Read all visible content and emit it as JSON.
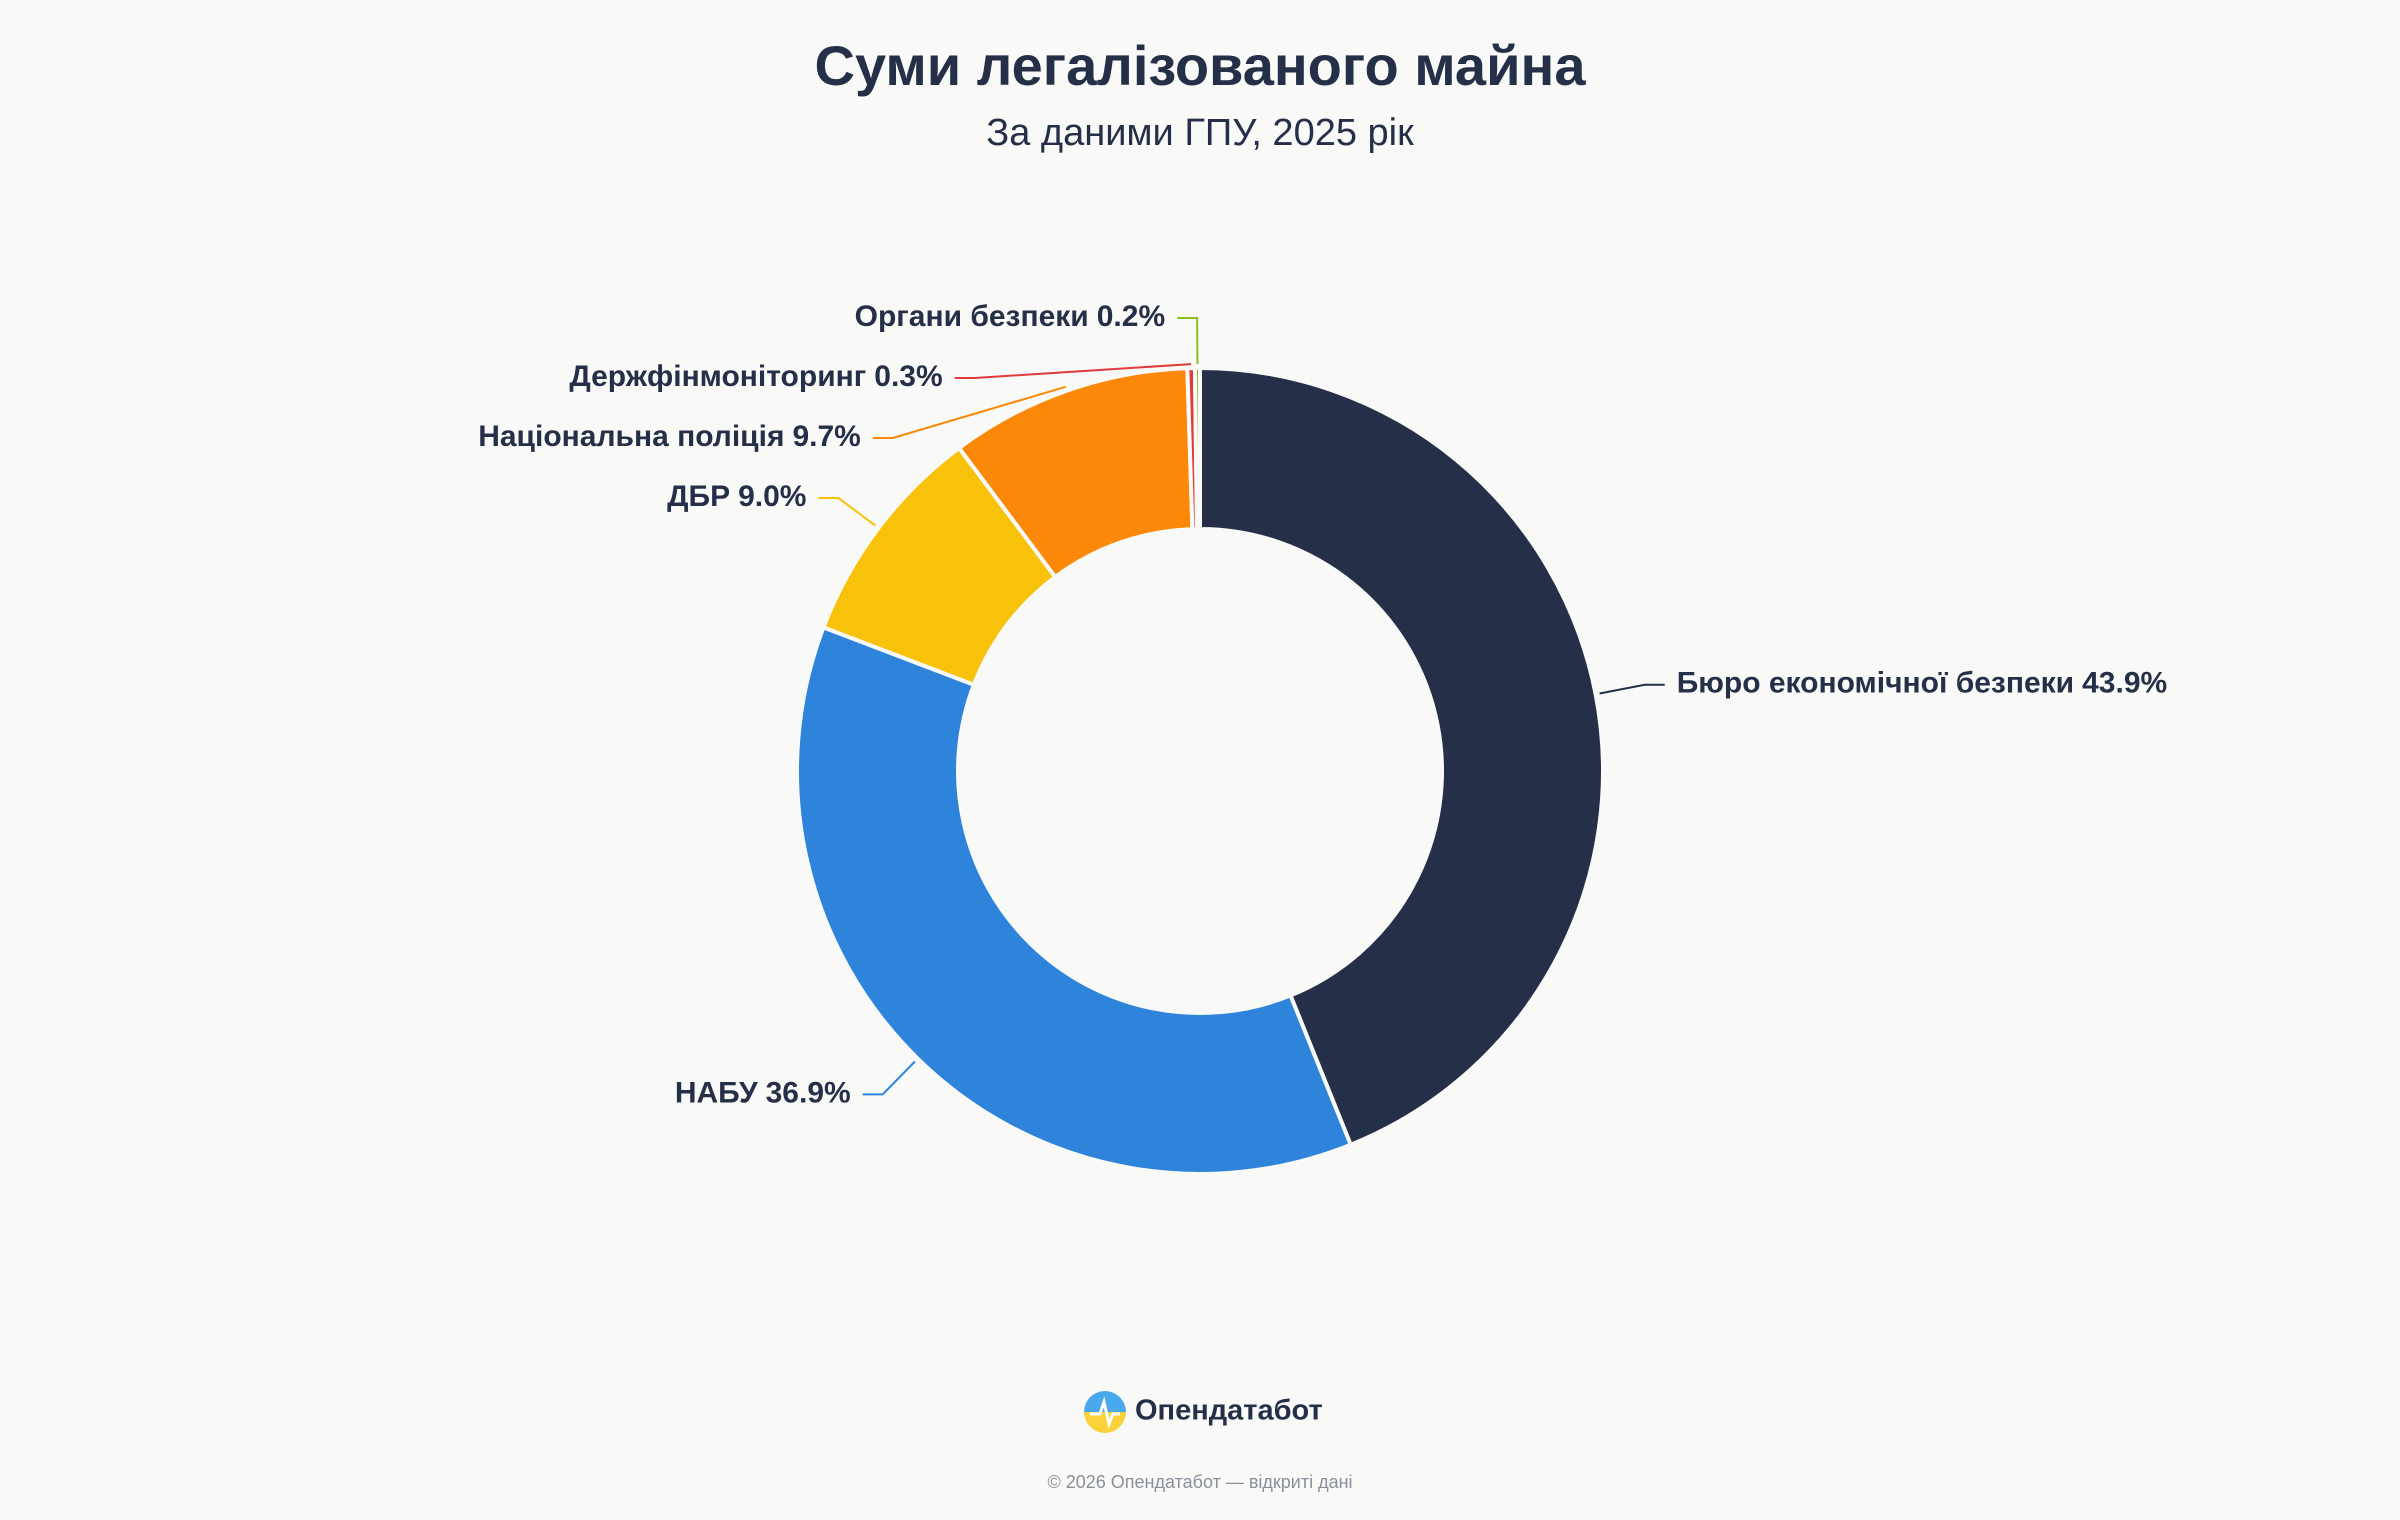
{
  "chart_data": {
    "type": "donut",
    "title": "Суми легалізованого майна",
    "subtitle": "За даними ГПУ, 2025 рік",
    "categories": [
      "Бюро економічної безпеки",
      "НАБУ",
      "ДБР",
      "Національна поліція",
      "Держфінмоніторинг",
      "Органи безпеки"
    ],
    "values": [
      43.9,
      36.9,
      9.0,
      9.7,
      0.3,
      0.2
    ],
    "value_labels": [
      "43.9%",
      "36.9%",
      "9.0%",
      "9.7%",
      "0.3%",
      "0.2%"
    ],
    "colors": [
      "#253048",
      "#2e84db",
      "#f9c20a",
      "#fb8808",
      "#e03a3a",
      "#8bbf1e"
    ]
  },
  "footer": {
    "brand": "Опендатабот",
    "copyright": "© 2026 Опендатабот — відкриті дані"
  }
}
